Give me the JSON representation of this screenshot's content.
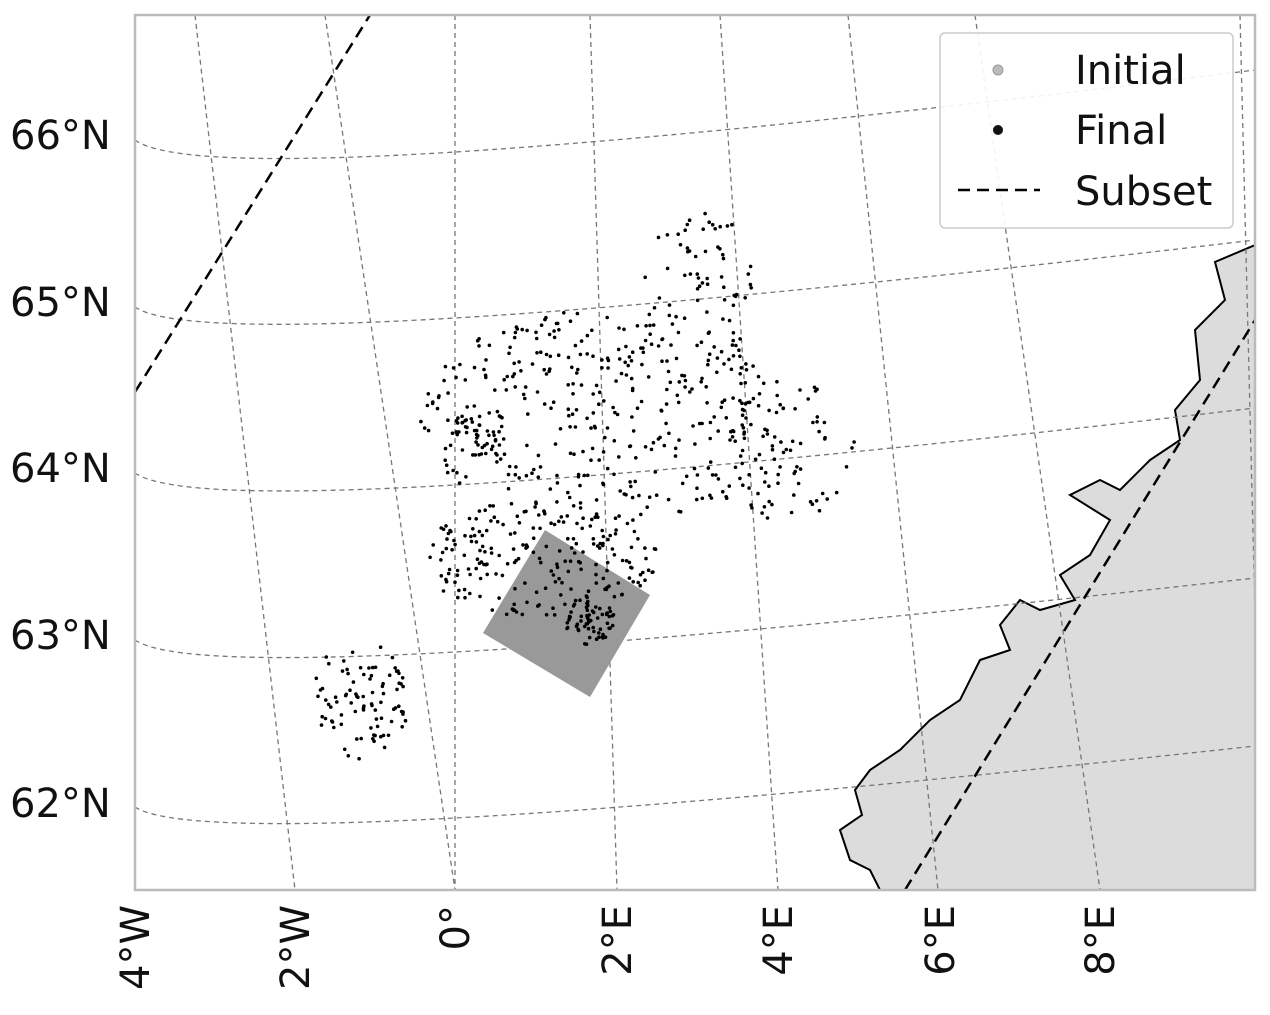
{
  "map": {
    "lat_labels": [
      "66°N",
      "65°N",
      "64°N",
      "63°N",
      "62°N"
    ],
    "lon_labels": [
      "4°W",
      "2°W",
      "0°",
      "2°E",
      "4°E",
      "6°E",
      "8°E"
    ],
    "legend": [
      "Initial",
      "Final",
      "Subset"
    ]
  }
}
